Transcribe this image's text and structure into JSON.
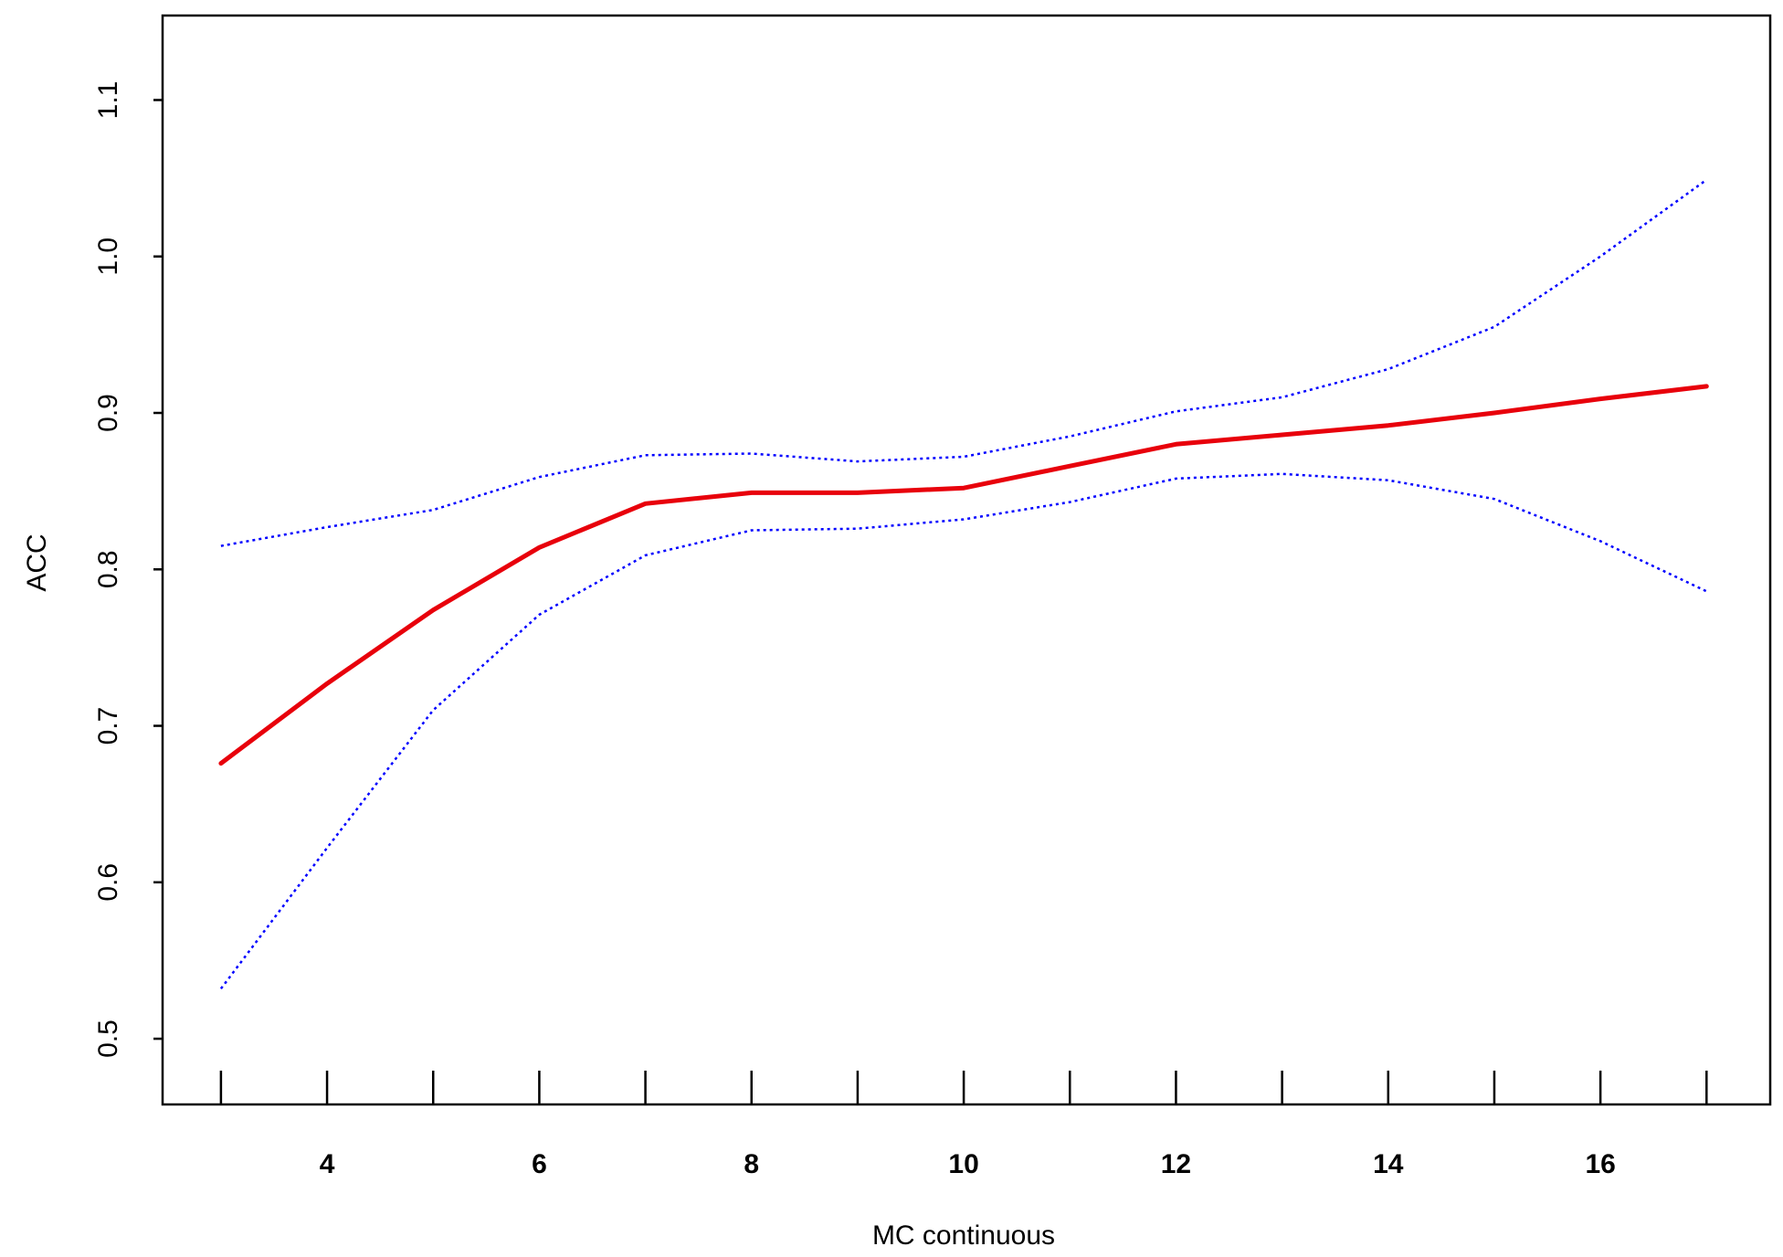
{
  "chart_data": {
    "type": "line",
    "title": "",
    "xlabel": "MC continuous",
    "ylabel": "ACC",
    "xlim": [
      2.45,
      17.6
    ],
    "ylim": [
      0.458,
      1.154
    ],
    "x_ticks": [
      3,
      4,
      5,
      6,
      7,
      8,
      9,
      10,
      11,
      12,
      13,
      14,
      15,
      16,
      17
    ],
    "x_tick_labels": [
      {
        "value": 4,
        "label": "4"
      },
      {
        "value": 6,
        "label": "6"
      },
      {
        "value": 8,
        "label": "8"
      },
      {
        "value": 10,
        "label": "10"
      },
      {
        "value": 12,
        "label": "12"
      },
      {
        "value": 14,
        "label": "14"
      },
      {
        "value": 16,
        "label": "16"
      }
    ],
    "y_ticks": [
      {
        "value": 0.5,
        "label": "0.5"
      },
      {
        "value": 0.6,
        "label": "0.6"
      },
      {
        "value": 0.7,
        "label": "0.7"
      },
      {
        "value": 0.8,
        "label": "0.8"
      },
      {
        "value": 0.9,
        "label": "0.9"
      },
      {
        "value": 1.0,
        "label": "1.0"
      },
      {
        "value": 1.1,
        "label": "1.1"
      }
    ],
    "grid": false,
    "x": [
      3,
      4,
      5,
      6,
      7,
      8,
      9,
      10,
      11,
      12,
      13,
      14,
      15,
      16,
      17
    ],
    "series": [
      {
        "role": "estimate",
        "color": "#e8000b",
        "style": "solid",
        "values": [
          0.676,
          0.727,
          0.774,
          0.814,
          0.842,
          0.849,
          0.849,
          0.852,
          0.866,
          0.88,
          0.886,
          0.892,
          0.9,
          0.909,
          0.917
        ]
      },
      {
        "role": "upper",
        "color": "#0000ff",
        "style": "dotted",
        "values": [
          0.815,
          0.827,
          0.838,
          0.859,
          0.873,
          0.874,
          0.869,
          0.872,
          0.885,
          0.901,
          0.91,
          0.928,
          0.955,
          1.0,
          1.049
        ]
      },
      {
        "role": "lower",
        "color": "#0000ff",
        "style": "dotted",
        "values": [
          0.532,
          0.622,
          0.71,
          0.771,
          0.809,
          0.825,
          0.826,
          0.832,
          0.843,
          0.858,
          0.861,
          0.857,
          0.845,
          0.818,
          0.786
        ]
      }
    ]
  }
}
